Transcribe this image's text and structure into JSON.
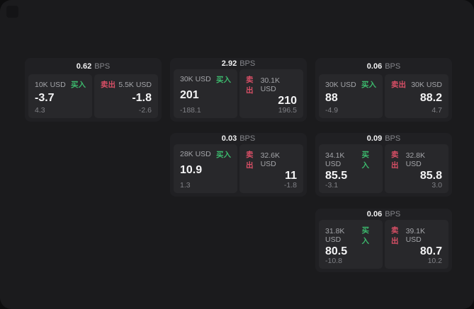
{
  "theme": {
    "outer_bg": "#0d0d0e",
    "panel_bg": "#1b1b1d",
    "card_bg": "#202023",
    "tile_bg": "#28282b",
    "buy_color": "#3cb96d",
    "sell_color": "#d94f66"
  },
  "labels": {
    "bps_unit": "BPS",
    "buy": "买入",
    "sell": "卖出"
  },
  "cards": [
    {
      "bps": "0.62",
      "col": 1,
      "row": 1,
      "buy": {
        "size": "10K USD",
        "price": "-3.7",
        "delta": "4.3"
      },
      "sell": {
        "size": "5.5K USD",
        "price": "-1.8",
        "delta": "-2.6"
      }
    },
    {
      "bps": "2.92",
      "col": 2,
      "row": 1,
      "buy": {
        "size": "30K USD",
        "price": "201",
        "delta": "-188.1"
      },
      "sell": {
        "size": "30.1K USD",
        "price": "210",
        "delta": "196.5"
      }
    },
    {
      "bps": "0.06",
      "col": 3,
      "row": 1,
      "buy": {
        "size": "30K USD",
        "price": "88",
        "delta": "-4.9"
      },
      "sell": {
        "size": "30K USD",
        "price": "88.2",
        "delta": "4.7"
      }
    },
    {
      "bps": "0.03",
      "col": 2,
      "row": 2,
      "buy": {
        "size": "28K USD",
        "price": "10.9",
        "delta": "1.3"
      },
      "sell": {
        "size": "32.6K USD",
        "price": "11",
        "delta": "-1.8"
      }
    },
    {
      "bps": "0.09",
      "col": 3,
      "row": 2,
      "buy": {
        "size": "34.1K USD",
        "price": "85.5",
        "delta": "-3.1"
      },
      "sell": {
        "size": "32.8K USD",
        "price": "85.8",
        "delta": "3.0"
      }
    },
    {
      "bps": "0.06",
      "col": 3,
      "row": 3,
      "buy": {
        "size": "31.8K USD",
        "price": "80.5",
        "delta": "-10.8"
      },
      "sell": {
        "size": "39.1K USD",
        "price": "80.7",
        "delta": "10.2"
      }
    }
  ],
  "layout": {
    "col_x": {
      "1": 35,
      "2": 240,
      "3": 445
    },
    "row_y": {
      "1": 82,
      "2": 188,
      "3": 295
    }
  }
}
